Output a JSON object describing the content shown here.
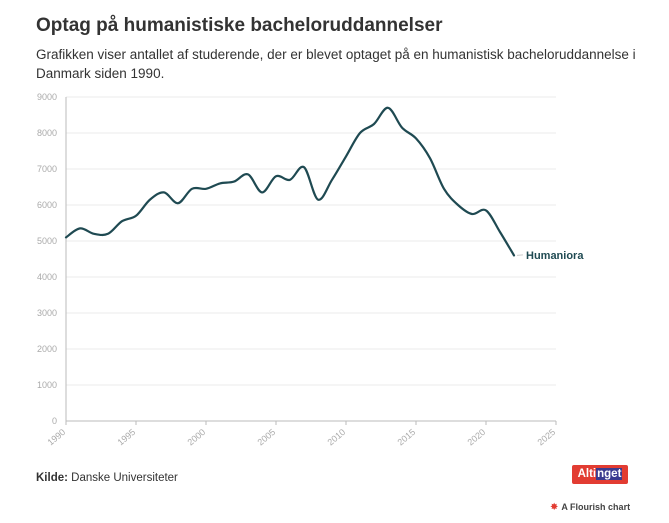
{
  "title": "Optag på humanistiske bacheloruddannelser",
  "subtitle": "Grafikken viser antallet af studerende, der er blevet optaget på en humanistisk bacheloruddannelse i Danmark siden 1990.",
  "source": {
    "label": "Kilde:",
    "text": "Danske Universiteter"
  },
  "logo": {
    "part1": "Alti",
    "part2": "nget"
  },
  "credit": {
    "icon": "flourish-icon",
    "text": "A Flourish chart"
  },
  "colors": {
    "line": "#1f4a52",
    "grid": "#ebebeb",
    "axis": "#bbbbbb",
    "tick_text": "#aaaaaa"
  },
  "chart_data": {
    "type": "line",
    "title": "Optag på humanistiske bacheloruddannelser",
    "xlabel": "",
    "ylabel": "",
    "xlim": [
      1990,
      2025
    ],
    "ylim": [
      0,
      9000
    ],
    "xticks": [
      "1990",
      "1995",
      "2000",
      "2005",
      "2010",
      "2015",
      "2020",
      "2025"
    ],
    "yticks": [
      "0",
      "1000",
      "2000",
      "3000",
      "4000",
      "5000",
      "6000",
      "7000",
      "8000",
      "9000"
    ],
    "series": [
      {
        "name": "Humaniora",
        "x": [
          1990,
          1991,
          1992,
          1993,
          1994,
          1995,
          1996,
          1997,
          1998,
          1999,
          2000,
          2001,
          2002,
          2003,
          2004,
          2005,
          2006,
          2007,
          2008,
          2009,
          2010,
          2011,
          2012,
          2013,
          2014,
          2015,
          2016,
          2017,
          2018,
          2019,
          2020,
          2021,
          2022
        ],
        "values": [
          5100,
          5350,
          5200,
          5200,
          5550,
          5700,
          6150,
          6350,
          6050,
          6450,
          6450,
          6600,
          6650,
          6850,
          6350,
          6800,
          6700,
          7050,
          6150,
          6700,
          7350,
          8000,
          8250,
          8700,
          8150,
          7850,
          7300,
          6450,
          6000,
          5750,
          5850,
          5250,
          4600
        ]
      }
    ]
  }
}
